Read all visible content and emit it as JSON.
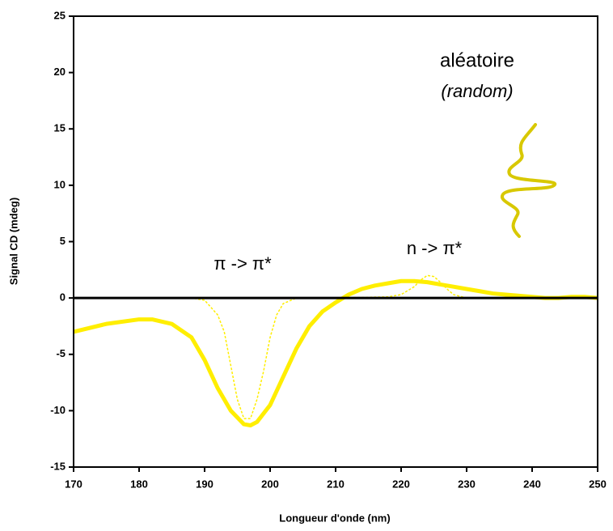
{
  "chart_data": {
    "type": "line",
    "xlabel": "Longueur d'onde (nm)",
    "ylabel": "Signal CD (mdeg)",
    "xlim": [
      170,
      250
    ],
    "xticks": [
      170,
      180,
      190,
      200,
      210,
      220,
      230,
      240,
      250
    ],
    "ylim": [
      -15,
      25
    ],
    "yticks": [
      -15,
      -10,
      -5,
      0,
      5,
      10,
      15,
      20,
      25
    ],
    "annotations": [
      "aléatoire",
      "(random)",
      "π -> π*",
      "n -> π*"
    ],
    "series": [
      {
        "color": "#ffee00",
        "style": "solid",
        "x": [
          170,
          175,
          180,
          182,
          185,
          188,
          190,
          192,
          194,
          196,
          197,
          198,
          200,
          202,
          204,
          206,
          208,
          210,
          212,
          214,
          216,
          218,
          220,
          222,
          224,
          226,
          228,
          230,
          232,
          234,
          236,
          238,
          240,
          242,
          244,
          246,
          248,
          250
        ],
        "values": [
          -3,
          -2.3,
          -1.9,
          -1.9,
          -2.3,
          -3.5,
          -5.5,
          -8,
          -10,
          -11.2,
          -11.3,
          -11,
          -9.5,
          -7,
          -4.5,
          -2.5,
          -1.2,
          -0.4,
          0.3,
          0.8,
          1.1,
          1.3,
          1.5,
          1.5,
          1.4,
          1.2,
          1,
          0.8,
          0.6,
          0.4,
          0.3,
          0.2,
          0.1,
          0,
          0,
          0.1,
          0.1,
          0
        ]
      },
      {
        "color": "#ffee00",
        "style": "dashed",
        "x": [
          181,
          188,
          190,
          192,
          193,
          194,
          195,
          196,
          197,
          198,
          199,
          200,
          201,
          202,
          204,
          210,
          218,
          220,
          222,
          223,
          224,
          225,
          226,
          227,
          228,
          230,
          235
        ],
        "values": [
          0,
          0,
          -0.2,
          -1.5,
          -3,
          -6,
          -9,
          -10.7,
          -10.7,
          -9,
          -6.5,
          -3.5,
          -1.5,
          -0.5,
          0,
          0,
          0.1,
          0.3,
          1,
          1.6,
          2,
          1.9,
          1.4,
          0.8,
          0.3,
          0,
          0
        ]
      }
    ]
  }
}
